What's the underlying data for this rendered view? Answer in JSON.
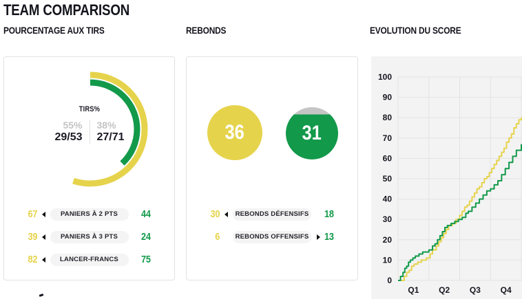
{
  "page": {
    "title": "TEAM COMPARISON"
  },
  "colors": {
    "team_a": "#e6d34c",
    "team_b": "#12994a",
    "gray_cap": "#c5c5c5",
    "dark_text": "#14141d",
    "muted_text": "#c3c3c3",
    "pill_bg": "#f4f4f4",
    "panel_border": "#e2e2e2",
    "chart_bg": "#f3f3f3",
    "grid_line": "#e3e3e3"
  },
  "shooting": {
    "title": "POURCENTAGE AUX TIRS",
    "donut": {
      "label": "TIRS%",
      "team_a_pct": "55%",
      "team_b_pct": "38%",
      "team_a_ratio": "29/53",
      "team_b_ratio": "27/71",
      "team_a_pct_value": 55,
      "team_b_pct_value": 38
    },
    "rows": [
      {
        "team_a": "67",
        "label": "PANIERS À 2 PTS",
        "team_b": "44",
        "leader": "a"
      },
      {
        "team_a": "39",
        "label": "PANIERS À 3 PTS",
        "team_b": "24",
        "leader": "a"
      },
      {
        "team_a": "82",
        "label": "LANCER-FRANCS",
        "team_b": "75",
        "leader": "a"
      }
    ]
  },
  "rebounds": {
    "title": "REBONDS",
    "total_a": "36",
    "total_b": "31",
    "total_a_value": 36,
    "total_b_value": 31,
    "rows": [
      {
        "team_a": "30",
        "label": "REBONDS DÉFENSIFS",
        "team_b": "18",
        "leader": "a"
      },
      {
        "team_a": "6",
        "label": "REBONDS OFFENSIFS",
        "team_b": "13",
        "leader": "b"
      }
    ]
  },
  "score_evolution": {
    "title": "EVOLUTION DU SCORE"
  },
  "chart_data": [
    {
      "type": "pie",
      "variant": "double-donut-gauge",
      "title": "POURCENTAGE AUX TIRS",
      "center_label": "TIRS%",
      "series": [
        {
          "name": "team-a",
          "color_key": "team_a",
          "pct": 55,
          "made": 29,
          "attempts": 53
        },
        {
          "name": "team-b",
          "color_key": "team_b",
          "pct": 38,
          "made": 27,
          "attempts": 71
        }
      ],
      "start_angle_deg": 0,
      "direction": "clockwise"
    },
    {
      "type": "bar",
      "variant": "proportional-circles",
      "title": "REBONDS",
      "categories": [
        "team-a",
        "team-b"
      ],
      "values": [
        36,
        31
      ],
      "fill_pct_b": 86
    },
    {
      "type": "line",
      "variant": "step-after",
      "title": "EVOLUTION DU SCORE",
      "x_ticks": [
        "Q1",
        "Q2",
        "Q3",
        "Q4"
      ],
      "y_ticks": [
        0,
        10,
        20,
        30,
        40,
        50,
        60,
        70,
        80,
        90,
        100
      ],
      "ylim": [
        0,
        100
      ],
      "xlim": [
        0,
        1
      ],
      "grid": true,
      "legend": false,
      "series": [
        {
          "name": "team-a",
          "color_key": "team_a",
          "final": 80,
          "points": [
            [
              0,
              0
            ],
            [
              0.03,
              0
            ],
            [
              0.05,
              2
            ],
            [
              0.07,
              4
            ],
            [
              0.09,
              5
            ],
            [
              0.11,
              7
            ],
            [
              0.13,
              8
            ],
            [
              0.16,
              9
            ],
            [
              0.19,
              10
            ],
            [
              0.23,
              11
            ],
            [
              0.26,
              13
            ],
            [
              0.28,
              15
            ],
            [
              0.31,
              17
            ],
            [
              0.33,
              19
            ],
            [
              0.35,
              21
            ],
            [
              0.37,
              23
            ],
            [
              0.39,
              25
            ],
            [
              0.41,
              27
            ],
            [
              0.44,
              28
            ],
            [
              0.47,
              30
            ],
            [
              0.5,
              32
            ],
            [
              0.52,
              34
            ],
            [
              0.54,
              36
            ],
            [
              0.56,
              37
            ],
            [
              0.58,
              39
            ],
            [
              0.6,
              41
            ],
            [
              0.62,
              43
            ],
            [
              0.64,
              45
            ],
            [
              0.66,
              46
            ],
            [
              0.68,
              48
            ],
            [
              0.7,
              50
            ],
            [
              0.72,
              51
            ],
            [
              0.74,
              53
            ],
            [
              0.76,
              55
            ],
            [
              0.78,
              57
            ],
            [
              0.8,
              59
            ],
            [
              0.82,
              61
            ],
            [
              0.84,
              63
            ],
            [
              0.86,
              65
            ],
            [
              0.88,
              68
            ],
            [
              0.9,
              70
            ],
            [
              0.92,
              72
            ],
            [
              0.94,
              75
            ],
            [
              0.96,
              77
            ],
            [
              0.98,
              79
            ],
            [
              1.0,
              80
            ]
          ]
        },
        {
          "name": "team-b",
          "color_key": "team_b",
          "final": 67,
          "points": [
            [
              0,
              0
            ],
            [
              0.02,
              2
            ],
            [
              0.04,
              4
            ],
            [
              0.055,
              6
            ],
            [
              0.07,
              7
            ],
            [
              0.085,
              9
            ],
            [
              0.1,
              10
            ],
            [
              0.12,
              11
            ],
            [
              0.14,
              12
            ],
            [
              0.17,
              13
            ],
            [
              0.2,
              14
            ],
            [
              0.25,
              15
            ],
            [
              0.28,
              17
            ],
            [
              0.3,
              18
            ],
            [
              0.32,
              20
            ],
            [
              0.34,
              22
            ],
            [
              0.36,
              24
            ],
            [
              0.38,
              26
            ],
            [
              0.4,
              27
            ],
            [
              0.43,
              28
            ],
            [
              0.46,
              29
            ],
            [
              0.49,
              30
            ],
            [
              0.52,
              31
            ],
            [
              0.55,
              33
            ],
            [
              0.57,
              34
            ],
            [
              0.6,
              36
            ],
            [
              0.63,
              38
            ],
            [
              0.66,
              40
            ],
            [
              0.69,
              42
            ],
            [
              0.72,
              44
            ],
            [
              0.75,
              45
            ],
            [
              0.78,
              47
            ],
            [
              0.81,
              49
            ],
            [
              0.84,
              52
            ],
            [
              0.87,
              55
            ],
            [
              0.9,
              58
            ],
            [
              0.93,
              61
            ],
            [
              0.96,
              64
            ],
            [
              1.0,
              67
            ]
          ]
        }
      ]
    }
  ]
}
